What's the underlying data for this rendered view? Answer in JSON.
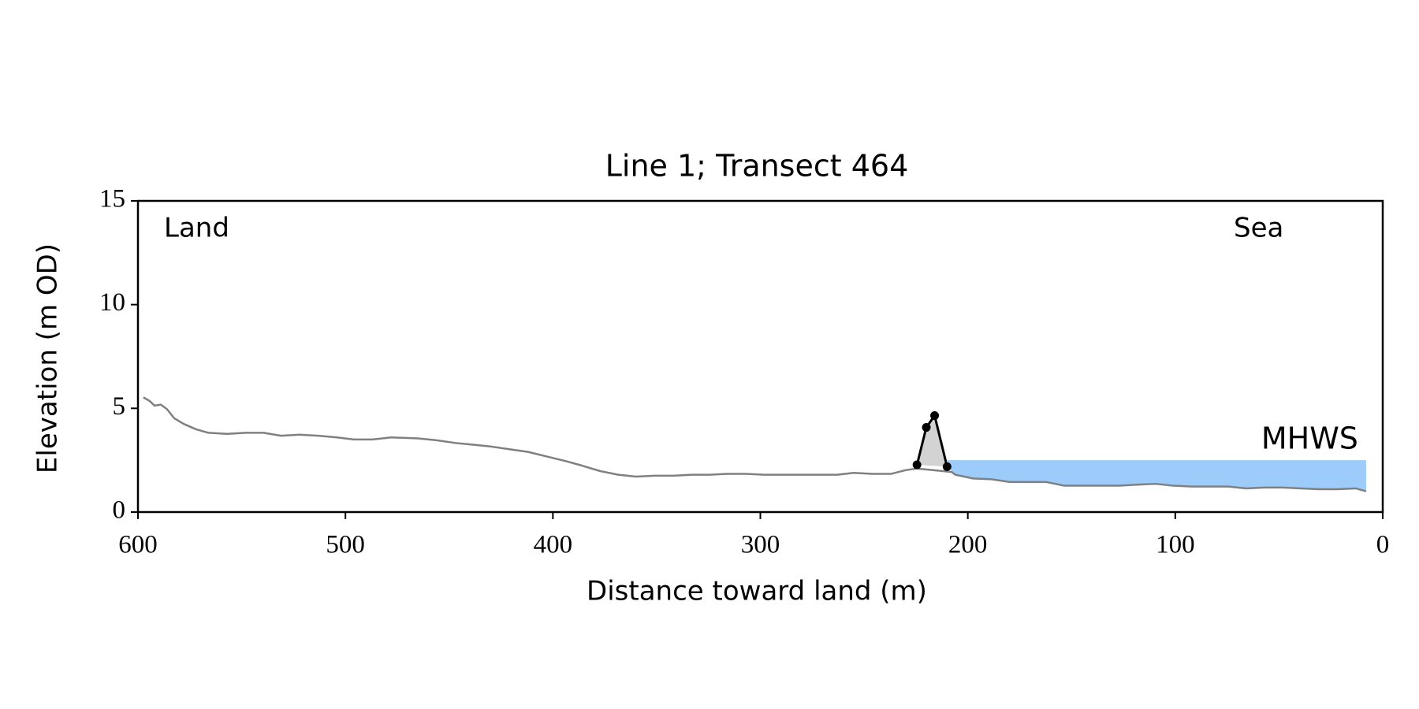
{
  "chart_data": {
    "type": "line",
    "title": "Line 1; Transect 464",
    "xlabel": "Distance toward land (m)",
    "ylabel": "Elevation (m OD)",
    "xlim": [
      600,
      0
    ],
    "ylim": [
      0,
      15
    ],
    "xticks": [
      600,
      500,
      400,
      300,
      200,
      100,
      0
    ],
    "yticks": [
      0,
      5,
      10,
      15
    ],
    "annotations": [
      {
        "text": "Land"
      },
      {
        "text": "Sea"
      }
    ],
    "mhws": {
      "label": "MHWS",
      "level": 2.5,
      "x": [
        210,
        8
      ],
      "color": "#9dcbfa",
      "label_color": "#6699cc"
    },
    "series": [
      {
        "name": "profile",
        "color": "#808080",
        "x": [
          597.4,
          594.3,
          592,
          589,
          586,
          582.5,
          578,
          572,
          566,
          557,
          548,
          539.5,
          531,
          522,
          513,
          504,
          496,
          487,
          478,
          465,
          456,
          447,
          439,
          430,
          421,
          412,
          403,
          394,
          386,
          377,
          368.5,
          360,
          351,
          342,
          333,
          324.5,
          316,
          307,
          298,
          289.5,
          281,
          272,
          263,
          255,
          246,
          237,
          230,
          224.5,
          207.8,
          206,
          197.5,
          188.6,
          180,
          171,
          162.3,
          153.5,
          144.7,
          136,
          127,
          118.4,
          109.6,
          101,
          92,
          83.3,
          74.5,
          65.8,
          57,
          48.3,
          39.5,
          30.8,
          22,
          13,
          8
        ],
        "values": [
          5.53,
          5.35,
          5.13,
          5.18,
          4.96,
          4.52,
          4.25,
          3.99,
          3.82,
          3.77,
          3.82,
          3.82,
          3.68,
          3.73,
          3.68,
          3.6,
          3.5,
          3.5,
          3.6,
          3.55,
          3.46,
          3.33,
          3.25,
          3.16,
          3.03,
          2.9,
          2.68,
          2.46,
          2.24,
          1.97,
          1.8,
          1.71,
          1.75,
          1.75,
          1.8,
          1.8,
          1.84,
          1.84,
          1.8,
          1.8,
          1.8,
          1.8,
          1.8,
          1.89,
          1.84,
          1.84,
          2.02,
          2.1,
          1.93,
          1.8,
          1.62,
          1.58,
          1.45,
          1.45,
          1.45,
          1.27,
          1.27,
          1.27,
          1.27,
          1.32,
          1.36,
          1.27,
          1.23,
          1.23,
          1.23,
          1.14,
          1.18,
          1.18,
          1.14,
          1.1,
          1.1,
          1.14,
          1.0
        ]
      },
      {
        "name": "dune",
        "color": "#000000",
        "fill": "#d3d3d3",
        "x": [
          224.5,
          220,
          216,
          210
        ],
        "values": [
          2.28,
          4.08,
          4.65,
          2.19
        ]
      }
    ]
  }
}
